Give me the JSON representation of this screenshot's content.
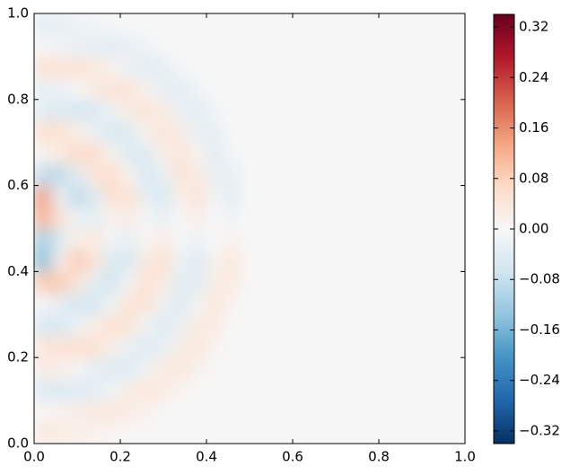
{
  "chart_data": {
    "type": "heatmap",
    "xlim": [
      0,
      1.0
    ],
    "ylim": [
      0,
      1.0
    ],
    "xticks": [
      {
        "value": 0,
        "label": "0.0"
      },
      0.2,
      0.4,
      0.6,
      0.8,
      {
        "value": 1.0,
        "label": "1.0"
      }
    ],
    "yticks": [
      {
        "value": 0,
        "label": "0.0"
      },
      0.2,
      0.4,
      0.6,
      0.8,
      {
        "value": 1.0,
        "label": "1.0"
      }
    ],
    "x_edges": [
      0,
      0.04,
      0.08,
      0.12,
      0.16,
      0.2,
      0.24,
      0.28,
      0.32,
      0.36,
      0.4,
      0.44,
      0.48,
      1.0
    ],
    "y_edges": [
      0,
      0.05,
      0.1,
      0.15,
      0.2,
      0.25,
      0.3,
      0.35,
      0.4,
      0.45,
      0.5,
      0.55,
      0.6,
      0.65,
      0.7,
      0.75,
      0.8,
      0.85,
      0.9,
      0.95,
      1.0
    ],
    "z": [
      [
        0.035,
        0.03,
        0.02,
        0.012,
        0.005,
        0,
        0,
        0,
        0,
        0,
        0,
        0,
        0
      ],
      [
        0.006,
        0.01,
        0.025,
        0.033,
        0.04,
        0.03,
        0.015,
        0,
        0,
        0,
        0,
        0,
        0
      ],
      [
        -0.05,
        -0.05,
        -0.048,
        -0.037,
        -0.01,
        0.022,
        0.04,
        0.03,
        0.008,
        0,
        0,
        0,
        0
      ],
      [
        0.027,
        0.02,
        -0.003,
        -0.03,
        -0.05,
        -0.045,
        -0.01,
        0.031,
        0.038,
        0.015,
        0,
        0,
        0
      ],
      [
        0.043,
        0.05,
        0.06,
        0.055,
        0.02,
        -0.027,
        -0.05,
        -0.025,
        0.025,
        0.038,
        0.01,
        0,
        0
      ],
      [
        -0.061,
        -0.052,
        -0.024,
        0.02,
        0.057,
        0.047,
        -0.011,
        -0.05,
        -0.024,
        0.031,
        0.03,
        0,
        0
      ],
      [
        -0.007,
        -0.031,
        -0.062,
        -0.063,
        -0.012,
        0.05,
        0.05,
        -0.017,
        -0.05,
        -0.006,
        0.04,
        0.009,
        0
      ],
      [
        0.09,
        0.09,
        0.042,
        -0.038,
        -0.067,
        -0.008,
        0.058,
        0.03,
        -0.041,
        -0.037,
        0.027,
        0.03,
        0
      ],
      [
        -0.15,
        0.02,
        0.09,
        0.045,
        -0.053,
        -0.054,
        0.032,
        0.055,
        -0.018,
        -0.048,
        0.01,
        0.04,
        0
      ],
      [
        -0.12,
        -0.05,
        0.02,
        0.035,
        -0.01,
        -0.028,
        0.005,
        0.025,
        -0.002,
        -0.021,
        0,
        0.017,
        0
      ],
      [
        0.12,
        0.05,
        -0.02,
        -0.035,
        0.01,
        0.028,
        -0.005,
        -0.025,
        0.002,
        0.021,
        0,
        -0.017,
        0
      ],
      [
        0.15,
        -0.02,
        -0.09,
        -0.045,
        0.053,
        0.054,
        -0.032,
        -0.055,
        0.018,
        0.048,
        -0.01,
        -0.04,
        0
      ],
      [
        -0.09,
        -0.09,
        -0.042,
        0.038,
        0.067,
        0.008,
        -0.058,
        -0.03,
        0.041,
        0.037,
        -0.027,
        -0.03,
        0
      ],
      [
        0.007,
        0.031,
        0.062,
        0.063,
        0.012,
        -0.05,
        -0.05,
        0.017,
        0.05,
        0.006,
        -0.04,
        -0.009,
        0
      ],
      [
        0.061,
        0.052,
        0.024,
        -0.02,
        -0.057,
        -0.047,
        0.011,
        0.05,
        0.024,
        -0.031,
        -0.03,
        0,
        0
      ],
      [
        -0.043,
        -0.05,
        -0.06,
        -0.055,
        -0.02,
        0.027,
        0.05,
        0.025,
        -0.025,
        -0.038,
        -0.01,
        0,
        0
      ],
      [
        -0.027,
        -0.02,
        0.003,
        0.03,
        0.05,
        0.045,
        0.01,
        -0.031,
        -0.038,
        -0.015,
        0,
        0,
        0
      ],
      [
        0.05,
        0.05,
        0.048,
        0.037,
        0.01,
        -0.022,
        -0.04,
        -0.03,
        -0.008,
        0,
        0,
        0,
        0
      ],
      [
        -0.006,
        -0.01,
        -0.025,
        -0.033,
        -0.04,
        -0.03,
        -0.015,
        0,
        0,
        0,
        0,
        0,
        0
      ],
      [
        -0.035,
        -0.03,
        -0.02,
        -0.012,
        -0.005,
        0,
        0,
        0,
        0,
        0,
        0,
        0,
        0
      ]
    ],
    "colors": [
      "#053061",
      "#2166ac",
      "#4393c3",
      "#92c5de",
      "#d1e5f0",
      "#f7f7f7",
      "#fddbc7",
      "#f4a582",
      "#d6604d",
      "#b2182b",
      "#67001f"
    ],
    "clim": [
      -0.34,
      0.34
    ],
    "colorbar_ticks": [
      {
        "value": -0.32,
        "label": "−0.32"
      },
      {
        "value": -0.24,
        "label": "−0.24"
      },
      {
        "value": -0.16,
        "label": "−0.16"
      },
      {
        "value": -0.08,
        "label": "−0.08"
      },
      {
        "value": 0,
        "label": "0.00"
      },
      0.08,
      0.16,
      0.24,
      0.32
    ]
  }
}
